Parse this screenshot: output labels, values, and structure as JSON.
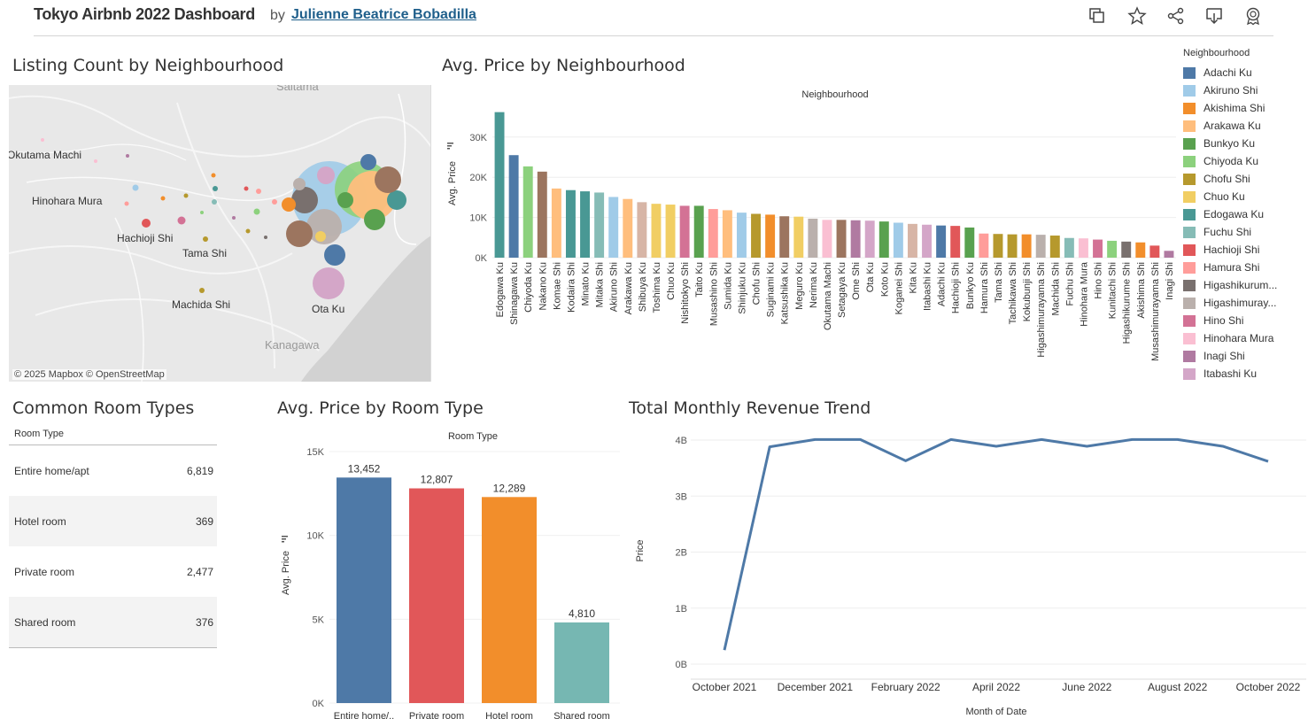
{
  "header": {
    "title": "Tokyo Airbnb 2022 Dashboard",
    "by": "by",
    "author": "Julienne Beatrice Bobadilla",
    "toolbar": [
      "copy-icon",
      "star-icon",
      "share-icon",
      "download-icon",
      "badge-icon"
    ]
  },
  "sections": {
    "listing_count": "Listing Count by Neighbourhood",
    "avg_price_neighbourhood": "Avg. Price by Neighbourhood",
    "room_types": "Common Room Types",
    "avg_price_room": "Avg. Price by Room Type",
    "revenue": "Total Monthly Revenue Trend"
  },
  "map": {
    "labels": {
      "saitama": "Saitama",
      "okutama": "Okutama Machi",
      "hinohara": "Hinohara Mura",
      "hachioji": "Hachioji Shi",
      "tama": "Tama Shi",
      "machida": "Machida Shi",
      "ota": "Ota Ku",
      "kanagawa": "Kanagawa"
    },
    "attribution": "© 2025 Mapbox  © OpenStreetMap"
  },
  "legend": {
    "title": "Neighbourhood",
    "items": [
      {
        "label": "Adachi Ku",
        "color": "#4e79a7"
      },
      {
        "label": "Akiruno Shi",
        "color": "#a0cbe8"
      },
      {
        "label": "Akishima Shi",
        "color": "#f28e2b"
      },
      {
        "label": "Arakawa Ku",
        "color": "#ffbe7d"
      },
      {
        "label": "Bunkyo Ku",
        "color": "#59a14f"
      },
      {
        "label": "Chiyoda Ku",
        "color": "#8cd17d"
      },
      {
        "label": "Chofu Shi",
        "color": "#b6992d"
      },
      {
        "label": "Chuo Ku",
        "color": "#f1ce63"
      },
      {
        "label": "Edogawa Ku",
        "color": "#499894"
      },
      {
        "label": "Fuchu Shi",
        "color": "#86bcb6"
      },
      {
        "label": "Hachioji Shi",
        "color": "#e15759"
      },
      {
        "label": "Hamura Shi",
        "color": "#ff9d9a"
      },
      {
        "label": "Higashikurum...",
        "color": "#79706e"
      },
      {
        "label": "Higashimuray...",
        "color": "#bab0ac"
      },
      {
        "label": "Hino Shi",
        "color": "#d37295"
      },
      {
        "label": "Hinohara Mura",
        "color": "#fabfd2"
      },
      {
        "label": "Inagi Shi",
        "color": "#b07aa1"
      },
      {
        "label": "Itabashi Ku",
        "color": "#d4a6c8"
      }
    ]
  },
  "chart_data": [
    {
      "type": "bar",
      "title": "Avg. Price by Neighbourhood",
      "header": "Neighbourhood",
      "ylabel": "Avg. Price",
      "ylim": [
        0,
        37000
      ],
      "yticks": [
        0,
        10000,
        20000,
        30000
      ],
      "ytick_labels": [
        "0K",
        "10K",
        "20K",
        "30K"
      ],
      "categories": [
        "Edogawa Ku",
        "Shinagawa Ku",
        "Chiyoda Ku",
        "Nakano Ku",
        "Komae Shi",
        "Kodaira Shi",
        "Minato Ku",
        "Mitaka Shi",
        "Akiruno Shi",
        "Arakawa Ku",
        "Shibuya Ku",
        "Toshima Ku",
        "Chuo Ku",
        "Nishitokyo Shi",
        "Taito Ku",
        "Musashino Shi",
        "Sumida Ku",
        "Shinjuku Ku",
        "Chofu Shi",
        "Suginami Ku",
        "Katsushika Ku",
        "Meguro Ku",
        "Nerima Ku",
        "Okutama Machi",
        "Setagaya Ku",
        "Ome Shi",
        "Ota Ku",
        "Koto Ku",
        "Koganei Shi",
        "Kita Ku",
        "Itabashi Ku",
        "Adachi Ku",
        "Hachioji Shi",
        "Bunkyo Ku",
        "Hamura Shi",
        "Tama Shi",
        "Tachikawa Shi",
        "Kokubunji Shi",
        "Higashimurayama Shi",
        "Machida Shi",
        "Fuchu Shi",
        "Hinohara Mura",
        "Hino Shi",
        "Kunitachi Shi",
        "Higashikurume Shi",
        "Akishima Shi",
        "Musashimurayama Shi",
        "Inagi Shi"
      ],
      "values": [
        36200,
        25500,
        22700,
        21400,
        17200,
        16800,
        16500,
        16200,
        15100,
        14600,
        13800,
        13400,
        13200,
        12900,
        12900,
        12100,
        11800,
        11200,
        10900,
        10700,
        10300,
        10200,
        9700,
        9400,
        9400,
        9300,
        9200,
        9000,
        8700,
        8400,
        8200,
        8000,
        7900,
        7500,
        6000,
        5900,
        5800,
        5800,
        5700,
        5500,
        4900,
        4800,
        4500,
        4200,
        4000,
        3800,
        3000,
        1700
      ],
      "colors": [
        "#499894",
        "#4e79a7",
        "#8cd17d",
        "#9c755f",
        "#ffbe7d",
        "#499894",
        "#499894",
        "#86bcb6",
        "#a0cbe8",
        "#ffbe7d",
        "#d7b5a6",
        "#f1ce63",
        "#f1ce63",
        "#d37295",
        "#59a14f",
        "#ff9d9a",
        "#ffbe7d",
        "#a0cbe8",
        "#b6992d",
        "#f28e2b",
        "#9c755f",
        "#f1ce63",
        "#bab0ac",
        "#fabfd2",
        "#9c755f",
        "#b07aa1",
        "#d4a6c8",
        "#59a14f",
        "#a0cbe8",
        "#d7b5a6",
        "#d4a6c8",
        "#4e79a7",
        "#e15759",
        "#59a14f",
        "#ff9d9a",
        "#b6992d",
        "#b6992d",
        "#f28e2b",
        "#bab0ac",
        "#b6992d",
        "#86bcb6",
        "#fabfd2",
        "#d37295",
        "#8cd17d",
        "#79706e",
        "#f28e2b",
        "#e15759",
        "#b07aa1"
      ]
    },
    {
      "type": "table",
      "title": "Common Room Types",
      "header": "Room Type",
      "rows": [
        {
          "name": "Entire home/apt",
          "count": "6,819"
        },
        {
          "name": "Hotel room",
          "count": "369"
        },
        {
          "name": "Private room",
          "count": "2,477"
        },
        {
          "name": "Shared room",
          "count": "376"
        }
      ]
    },
    {
      "type": "bar",
      "title": "Avg. Price by Room Type",
      "header": "Room Type",
      "ylabel": "Avg. Price",
      "ylim": [
        0,
        15000
      ],
      "yticks": [
        0,
        5000,
        10000,
        15000
      ],
      "ytick_labels": [
        "0K",
        "5K",
        "10K",
        "15K"
      ],
      "categories": [
        "Entire home/..",
        "Private room",
        "Hotel room",
        "Shared room"
      ],
      "values": [
        13452,
        12807,
        12289,
        4810
      ],
      "labels": [
        "13,452",
        "12,807",
        "12,289",
        "4,810"
      ],
      "colors": [
        "#4e79a7",
        "#e15759",
        "#f28e2b",
        "#76b7b2"
      ]
    },
    {
      "type": "line",
      "title": "Total Monthly Revenue Trend",
      "xlabel": "Month of Date",
      "ylabel": "Price",
      "ylim": [
        0,
        4000000000
      ],
      "yticks": [
        0,
        1000000000,
        2000000000,
        3000000000,
        4000000000
      ],
      "ytick_labels": [
        "0B",
        "1B",
        "2B",
        "3B",
        "4B"
      ],
      "x": [
        "2021-10",
        "2021-11",
        "2021-12",
        "2022-01",
        "2022-02",
        "2022-03",
        "2022-04",
        "2022-05",
        "2022-06",
        "2022-07",
        "2022-08",
        "2022-09",
        "2022-10"
      ],
      "xtick_labels": [
        "October 2021",
        "December 2021",
        "February 2022",
        "April 2022",
        "June 2022",
        "August 2022",
        "October 2022"
      ],
      "xtick_positions": [
        "2021-10",
        "2021-12",
        "2022-02",
        "2022-04",
        "2022-06",
        "2022-08",
        "2022-10"
      ],
      "values": [
        250000000,
        3880000000,
        4010000000,
        4010000000,
        3630000000,
        4010000000,
        3890000000,
        4010000000,
        3890000000,
        4010000000,
        4010000000,
        3890000000,
        3620000000
      ],
      "color": "#4e79a7"
    }
  ]
}
